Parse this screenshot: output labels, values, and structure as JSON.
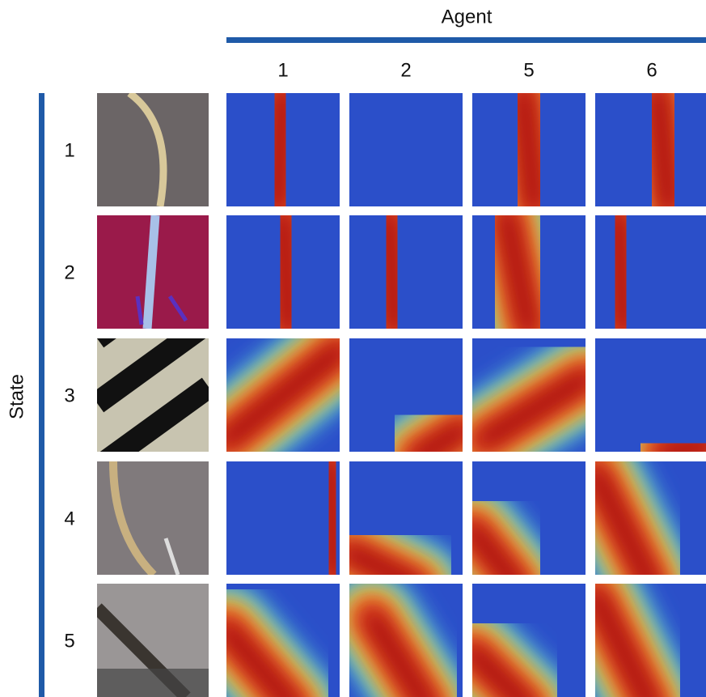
{
  "header": {
    "title": "Agent",
    "columns": [
      "1",
      "2",
      "5",
      "6"
    ]
  },
  "side": {
    "title": "State",
    "rows": [
      "1",
      "2",
      "3",
      "4",
      "5"
    ]
  }
}
